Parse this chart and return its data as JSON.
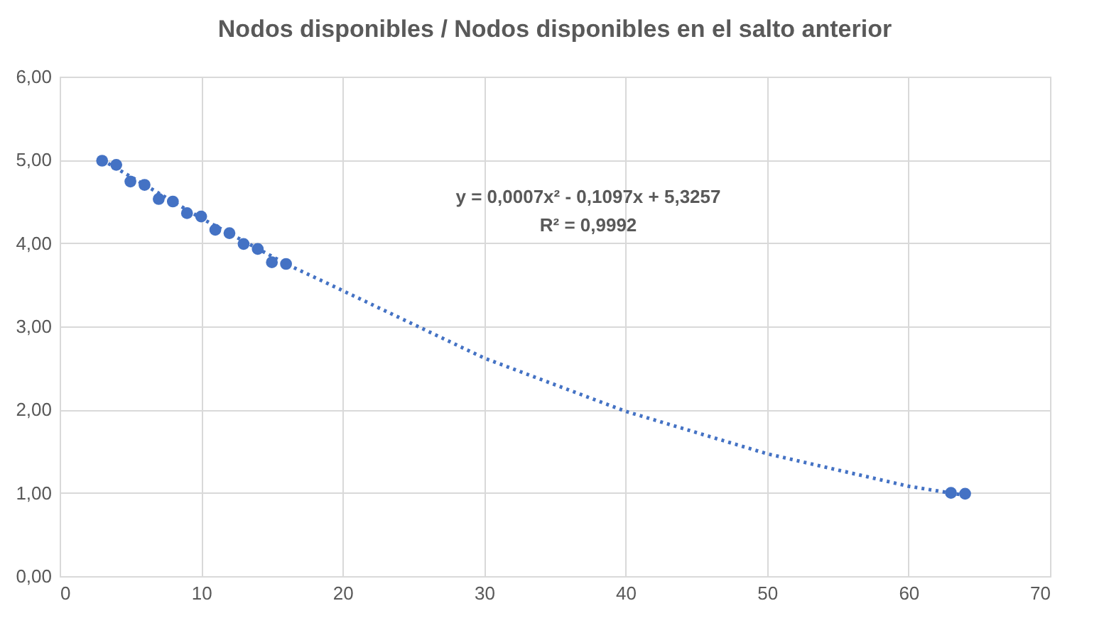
{
  "chart_data": {
    "type": "scatter",
    "title": "Nodos disponibles / Nodos disponibles en el salto anterior",
    "xlim": [
      0,
      70
    ],
    "xticks": [
      0,
      10,
      20,
      30,
      40,
      50,
      60,
      70
    ],
    "ylim": [
      0,
      6
    ],
    "yticks": [
      {
        "value": 0,
        "label": "0,00"
      },
      {
        "value": 1,
        "label": "1,00"
      },
      {
        "value": 2,
        "label": "2,00"
      },
      {
        "value": 3,
        "label": "3,00"
      },
      {
        "value": 4,
        "label": "4,00"
      },
      {
        "value": 5,
        "label": "5,00"
      },
      {
        "value": 6,
        "label": "6,00"
      }
    ],
    "grid": true,
    "series": [
      {
        "color": "#4472c4",
        "marker": "circle",
        "x": [
          3,
          4,
          5,
          6,
          7,
          8,
          9,
          10,
          11,
          12,
          13,
          14,
          15,
          16,
          63,
          64
        ],
        "values": [
          4.99,
          4.94,
          4.74,
          4.7,
          4.53,
          4.5,
          4.36,
          4.32,
          4.16,
          4.12,
          3.99,
          3.93,
          3.77,
          3.75,
          1.0,
          0.99
        ]
      },
      {
        "type": "line",
        "color": "#4472c4",
        "line_style": "dotted",
        "marker": "none",
        "x": [
          3,
          10,
          16,
          20,
          30,
          40,
          50,
          60,
          64
        ],
        "values": [
          5.0,
          4.3,
          3.75,
          3.43,
          2.62,
          1.98,
          1.47,
          1.08,
          0.97
        ]
      }
    ],
    "annotations": [
      "y = 0,0007x² - 0,1097x + 5,3257",
      "R² = 0,9992"
    ]
  }
}
